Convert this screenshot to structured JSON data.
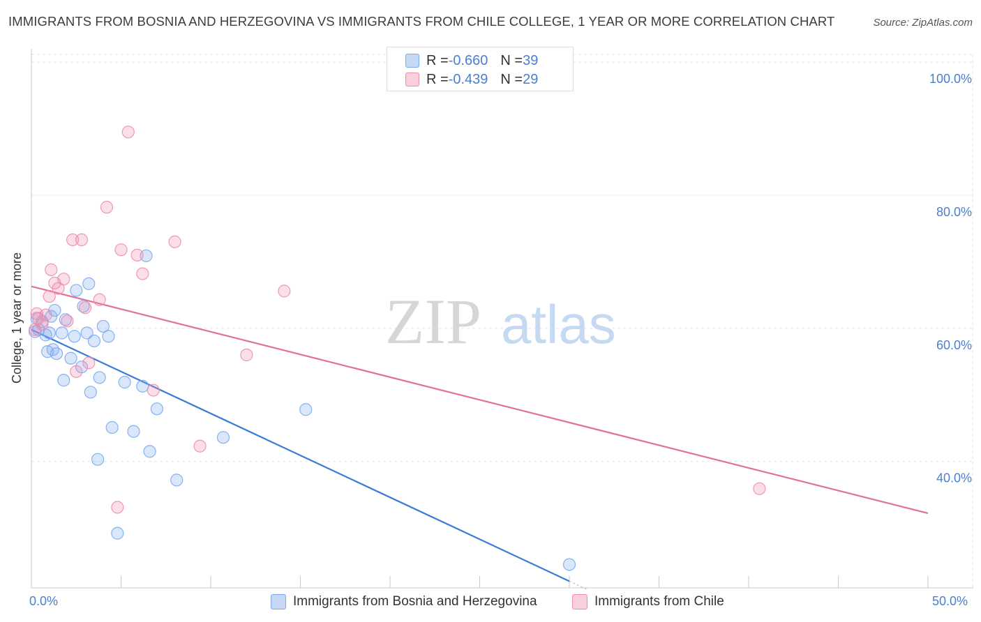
{
  "title": "IMMIGRANTS FROM BOSNIA AND HERZEGOVINA VS IMMIGRANTS FROM CHILE COLLEGE, 1 YEAR OR MORE CORRELATION CHART",
  "source": "Source: ZipAtlas.com",
  "watermark": {
    "zip": "ZIP",
    "atlas": "atlas"
  },
  "stats": [
    {
      "r_label": "R = ",
      "r_value": "-0.660",
      "n_label": "N = ",
      "n_value": "39",
      "color": "#7aaaf0"
    },
    {
      "r_label": "R = ",
      "r_value": "-0.439",
      "n_label": "N = ",
      "n_value": "29",
      "color": "#f08cab"
    }
  ],
  "chart_data": {
    "type": "scatter",
    "title": "IMMIGRANTS FROM BOSNIA AND HERZEGOVINA VS IMMIGRANTS FROM CHILE COLLEGE, 1 YEAR OR MORE CORRELATION CHART",
    "xlabel": "",
    "ylabel": "College, 1 year or more",
    "xlim": [
      0,
      50
    ],
    "ylim": [
      21,
      102
    ],
    "x_tick_labels": [
      "0.0%",
      "50.0%"
    ],
    "y_ticks": [
      40,
      60,
      80,
      100
    ],
    "y_tick_labels": [
      "40.0%",
      "60.0%",
      "80.0%",
      "100.0%"
    ],
    "grid": true,
    "legend_position": "bottom-center",
    "series": [
      {
        "name": "Immigrants from Bosnia and Herzegovina",
        "color": "#7aaaf0",
        "line_color": "#3a7bd5",
        "trend": {
          "x": [
            0,
            30
          ],
          "y": [
            59.8,
            22.0
          ]
        },
        "points": [
          [
            0.3,
            61.5
          ],
          [
            0.4,
            59.8
          ],
          [
            0.6,
            61.0
          ],
          [
            0.8,
            59.0
          ],
          [
            0.9,
            56.5
          ],
          [
            1.0,
            59.3
          ],
          [
            1.2,
            56.8
          ],
          [
            1.3,
            62.7
          ],
          [
            1.4,
            56.2
          ],
          [
            1.7,
            59.3
          ],
          [
            1.8,
            52.2
          ],
          [
            1.9,
            61.3
          ],
          [
            2.2,
            55.5
          ],
          [
            2.4,
            58.8
          ],
          [
            2.5,
            65.7
          ],
          [
            2.8,
            54.2
          ],
          [
            2.9,
            63.3
          ],
          [
            3.1,
            59.3
          ],
          [
            3.2,
            66.7
          ],
          [
            3.3,
            50.4
          ],
          [
            3.5,
            58.1
          ],
          [
            3.7,
            40.3
          ],
          [
            3.8,
            52.6
          ],
          [
            4.0,
            60.3
          ],
          [
            4.3,
            58.8
          ],
          [
            4.5,
            45.1
          ],
          [
            4.8,
            29.2
          ],
          [
            5.2,
            51.9
          ],
          [
            5.7,
            44.5
          ],
          [
            6.2,
            51.3
          ],
          [
            6.4,
            70.9
          ],
          [
            6.6,
            41.5
          ],
          [
            7.0,
            47.9
          ],
          [
            8.1,
            37.2
          ],
          [
            10.7,
            43.6
          ],
          [
            15.3,
            47.8
          ],
          [
            30.0,
            24.5
          ],
          [
            0.2,
            59.5
          ],
          [
            1.1,
            61.8
          ]
        ]
      },
      {
        "name": "Immigrants from Chile",
        "color": "#f08cab",
        "line_color": "#e0709a",
        "trend": {
          "x": [
            0,
            50
          ],
          "y": [
            66.3,
            32.2
          ]
        },
        "points": [
          [
            0.3,
            62.2
          ],
          [
            0.4,
            61.5
          ],
          [
            0.6,
            60.6
          ],
          [
            0.8,
            62.0
          ],
          [
            1.0,
            64.8
          ],
          [
            1.1,
            68.8
          ],
          [
            1.3,
            66.8
          ],
          [
            1.5,
            66.0
          ],
          [
            1.8,
            67.4
          ],
          [
            2.0,
            61.1
          ],
          [
            2.3,
            73.3
          ],
          [
            2.5,
            53.5
          ],
          [
            2.8,
            73.3
          ],
          [
            3.0,
            63.1
          ],
          [
            3.2,
            54.8
          ],
          [
            3.8,
            64.3
          ],
          [
            4.2,
            78.2
          ],
          [
            4.8,
            33.1
          ],
          [
            5.0,
            71.8
          ],
          [
            5.4,
            89.5
          ],
          [
            5.9,
            71.0
          ],
          [
            6.2,
            68.2
          ],
          [
            6.8,
            50.7
          ],
          [
            8.0,
            73.0
          ],
          [
            9.4,
            42.3
          ],
          [
            12.0,
            56.0
          ],
          [
            14.1,
            65.6
          ],
          [
            40.6,
            35.9
          ],
          [
            0.2,
            59.8
          ]
        ]
      }
    ]
  }
}
